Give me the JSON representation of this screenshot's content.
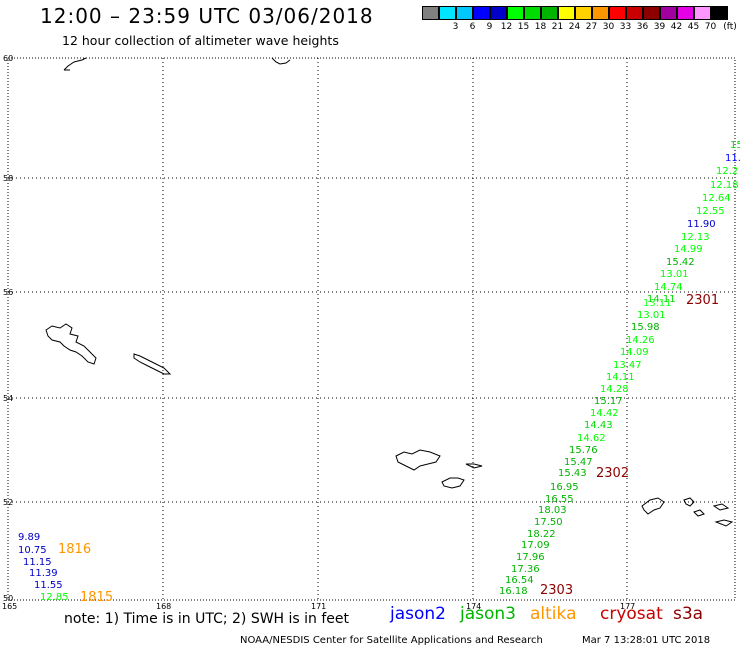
{
  "header": {
    "title": "12:00 – 23:59 UTC 03/06/2018",
    "subtitle": "12 hour collection of altimeter wave heights"
  },
  "color_scale": {
    "unit": "(ft)",
    "bins": [
      {
        "label": "",
        "color": "#808080"
      },
      {
        "label": "3",
        "color": "#00e6ff"
      },
      {
        "label": "6",
        "color": "#00c8ff"
      },
      {
        "label": "9",
        "color": "#0000ff"
      },
      {
        "label": "12",
        "color": "#0000c8"
      },
      {
        "label": "15",
        "color": "#00ff00"
      },
      {
        "label": "18",
        "color": "#00dc00"
      },
      {
        "label": "21",
        "color": "#00b400"
      },
      {
        "label": "24",
        "color": "#ffff00"
      },
      {
        "label": "27",
        "color": "#ffd200"
      },
      {
        "label": "30",
        "color": "#ff9600"
      },
      {
        "label": "33",
        "color": "#ff0000"
      },
      {
        "label": "36",
        "color": "#c80000"
      },
      {
        "label": "39",
        "color": "#8c0000"
      },
      {
        "label": "42",
        "color": "#a000a0"
      },
      {
        "label": "45",
        "color": "#e600e6"
      },
      {
        "label": "70",
        "color": "#ff96ff"
      },
      {
        "label": "",
        "color": "#000000"
      }
    ]
  },
  "axes": {
    "lat_labels": [
      "60",
      "58",
      "56",
      "54",
      "52",
      "50"
    ],
    "lon_labels": [
      "165",
      "168",
      "171",
      "174",
      "177"
    ]
  },
  "footer": {
    "note": "note: 1) Time is in UTC; 2) SWH is in feet",
    "satellites": [
      {
        "name": "jason2",
        "color": "#0000ff"
      },
      {
        "name": "jason3",
        "color": "#00b400"
      },
      {
        "name": "altika",
        "color": "#ff9600"
      },
      {
        "name": "cryosat",
        "color": "#c80000"
      },
      {
        "name": "s3a",
        "color": "#8c0000"
      }
    ],
    "credit": "NOAA/NESDIS Center for Satellite Applications and Research",
    "timestamp": "Mar  7 13:28:01 UTC 2018"
  },
  "time_labels": [
    {
      "text": "1816",
      "color": "#ff9600"
    },
    {
      "text": "1815",
      "color": "#ff9600"
    },
    {
      "text": "2301",
      "color": "#8c0000"
    },
    {
      "text": "2302",
      "color": "#8c0000"
    },
    {
      "text": "2303",
      "color": "#8c0000"
    }
  ],
  "wave_heights": [
    {
      "value": "15",
      "color": "#00dc00"
    },
    {
      "value": "11.",
      "color": "#0000ff"
    },
    {
      "value": "12.2",
      "color": "#00ff00"
    },
    {
      "value": "12.18",
      "color": "#00ff00"
    },
    {
      "value": "12.64",
      "color": "#00ff00"
    },
    {
      "value": "12.55",
      "color": "#00ff00"
    },
    {
      "value": "11.90",
      "color": "#0000c8"
    },
    {
      "value": "12.13",
      "color": "#00ff00"
    },
    {
      "value": "14.99",
      "color": "#00ff00"
    },
    {
      "value": "15.42",
      "color": "#00b400"
    },
    {
      "value": "13.01",
      "color": "#00ff00"
    },
    {
      "value": "14.74",
      "color": "#00ff00"
    },
    {
      "value": "14.11",
      "color": "#00dc00"
    },
    {
      "value": "13.11",
      "color": "#00ff00"
    },
    {
      "value": "13.01",
      "color": "#00ff00"
    },
    {
      "value": "15.98",
      "color": "#00b400"
    },
    {
      "value": "14.26",
      "color": "#00ff00"
    },
    {
      "value": "14.09",
      "color": "#00ff00"
    },
    {
      "value": "13.47",
      "color": "#00ff00"
    },
    {
      "value": "14.11",
      "color": "#00ff00"
    },
    {
      "value": "14.28",
      "color": "#00ff00"
    },
    {
      "value": "15.17",
      "color": "#00b400"
    },
    {
      "value": "14.42",
      "color": "#00ff00"
    },
    {
      "value": "14.43",
      "color": "#00dc00"
    },
    {
      "value": "14.62",
      "color": "#00ff00"
    },
    {
      "value": "15.76",
      "color": "#00b400"
    },
    {
      "value": "15.47",
      "color": "#00b400"
    },
    {
      "value": "15.43",
      "color": "#00b400"
    },
    {
      "value": "16.95",
      "color": "#00b400"
    },
    {
      "value": "16.55",
      "color": "#00b400"
    },
    {
      "value": "18.03",
      "color": "#00b400"
    },
    {
      "value": "17.50",
      "color": "#00b400"
    },
    {
      "value": "18.22",
      "color": "#00b400"
    },
    {
      "value": "17.09",
      "color": "#00b400"
    },
    {
      "value": "17.96",
      "color": "#00b400"
    },
    {
      "value": "17.36",
      "color": "#00b400"
    },
    {
      "value": "16.54",
      "color": "#00b400"
    },
    {
      "value": "16.18",
      "color": "#00b400"
    },
    {
      "value": "9.89",
      "color": "#0000c8"
    },
    {
      "value": "10.75",
      "color": "#0000c8"
    },
    {
      "value": "11.15",
      "color": "#0000c8"
    },
    {
      "value": "11.39",
      "color": "#0000c8"
    },
    {
      "value": "11.55",
      "color": "#0000c8"
    },
    {
      "value": "12.85",
      "color": "#00ff00"
    }
  ]
}
